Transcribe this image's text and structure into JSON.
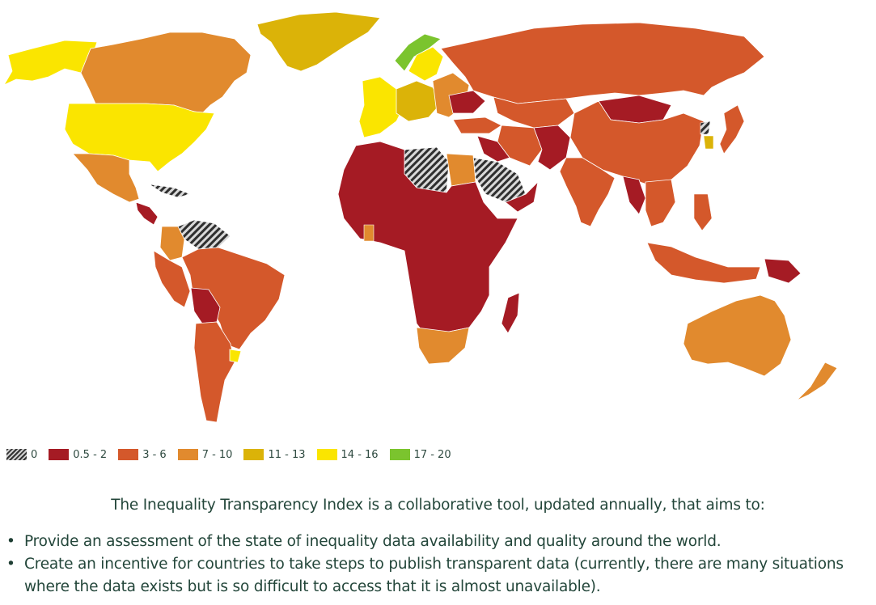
{
  "colors": {
    "c0": "hatched-dark-grey",
    "c05_2": "#a51b24",
    "c3_6": "#d4582b",
    "c7_10": "#e18a2e",
    "c11_13": "#dbb308",
    "c14_16": "#fae500",
    "c17_20": "#7bc42e"
  },
  "legend": [
    {
      "label": "0",
      "color": "hatch"
    },
    {
      "label": "0.5 - 2",
      "color": "#a51b24"
    },
    {
      "label": "3 - 6",
      "color": "#d4582b"
    },
    {
      "label": "7 - 10",
      "color": "#e18a2e"
    },
    {
      "label": "11 - 13",
      "color": "#dbb308"
    },
    {
      "label": "14 - 16",
      "color": "#fae500"
    },
    {
      "label": "17 - 20",
      "color": "#7bc42e"
    }
  ],
  "intro": "The Inequality Transparency Index is a collaborative tool, updated annually, that aims to:",
  "bullets": [
    "Provide an assessment of the state of inequality data availability and quality around the world.",
    "Create an incentive for countries to take steps to publish transparent data (currently, there are many situations where the data exists but is so difficult to access that it is almost unavailable)."
  ]
}
